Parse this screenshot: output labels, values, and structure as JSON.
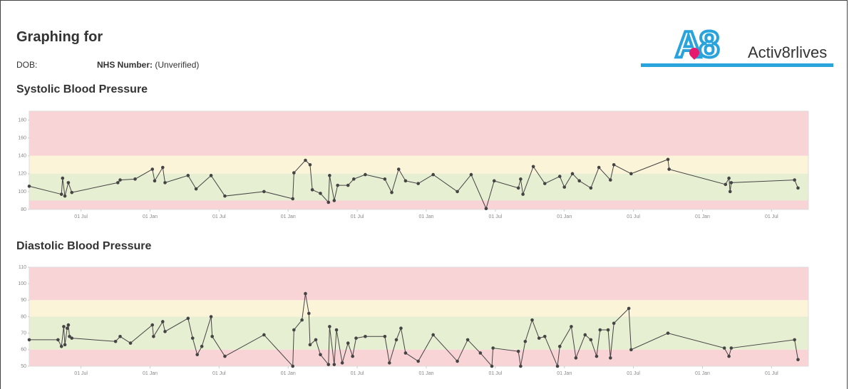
{
  "header": {
    "title": "Graphing for",
    "dob_label": "DOB:",
    "nhs_label": "NHS Number:",
    "nhs_value": "(Unverified)"
  },
  "logo": {
    "mark": "A8",
    "name": "Activ8rlives"
  },
  "chart_data": [
    {
      "type": "line",
      "title": "Systolic Blood Pressure",
      "color": "#444444",
      "marker": true,
      "x": [
        1.5,
        4.3,
        4.4,
        4.6,
        4.9,
        5.2,
        9.2,
        9.4,
        10.7,
        12.2,
        12.4,
        13.1,
        13.3,
        15.3,
        16.0,
        17.3,
        18.5,
        21.9,
        24.4,
        24.5,
        25.5,
        25.9,
        26.1,
        26.8,
        27.5,
        27.6,
        28.0,
        28.3,
        29.2,
        29.7,
        30.7,
        32.4,
        33.0,
        33.6,
        34.2,
        35.3,
        36.6,
        38.7,
        39.9,
        41.2,
        41.9,
        44.0,
        44.2,
        44.4,
        45.3,
        46.3,
        47.6,
        48.0,
        48.7,
        49.3,
        50.3,
        51.0,
        52.0,
        52.3,
        53.8,
        57.0,
        57.1,
        62.0,
        62.3,
        62.4,
        62.5,
        68.0,
        68.3
      ],
      "values": [
        106,
        97,
        115,
        95,
        110,
        99,
        110,
        113,
        114,
        125,
        112,
        127,
        110,
        118,
        103,
        118,
        95,
        100,
        92,
        121,
        135,
        130,
        102,
        98,
        88,
        118,
        90,
        107,
        107,
        114,
        119,
        114,
        99,
        125,
        112,
        109,
        119,
        100,
        119,
        81,
        112,
        104,
        114,
        97,
        128,
        109,
        117,
        105,
        120,
        112,
        104,
        127,
        113,
        130,
        120,
        136,
        125,
        108,
        115,
        100,
        110,
        113,
        104
      ],
      "xlim": [
        1.5,
        69.2
      ],
      "xticks": [
        {
          "value": 6,
          "label": "01 Jul"
        },
        {
          "value": 12,
          "label": "01 Jan"
        },
        {
          "value": 18,
          "label": "01 Jul"
        },
        {
          "value": 24,
          "label": "01 Jan"
        },
        {
          "value": 30,
          "label": "01 Jul"
        },
        {
          "value": 36,
          "label": "01 Jan"
        },
        {
          "value": 42,
          "label": "01 Jul"
        },
        {
          "value": 48,
          "label": "01 Jan"
        },
        {
          "value": 54,
          "label": "01 Jul"
        },
        {
          "value": 60,
          "label": "01 Jan"
        },
        {
          "value": 66,
          "label": "01 Jul"
        }
      ],
      "ylim": [
        80,
        190
      ],
      "yticks": [
        80,
        100,
        120,
        140,
        160,
        180
      ],
      "bands": [
        {
          "from": 140,
          "to": 190,
          "color": "#f9d4d6"
        },
        {
          "from": 120,
          "to": 140,
          "color": "#fbf4d8"
        },
        {
          "from": 90,
          "to": 120,
          "color": "#e7efd2"
        },
        {
          "from": 80,
          "to": 90,
          "color": "#f9d4d6"
        }
      ]
    },
    {
      "type": "line",
      "title": "Diastolic Blood Pressure",
      "color": "#444444",
      "marker": true,
      "x": [
        1.5,
        4.0,
        4.3,
        4.5,
        4.6,
        4.8,
        4.9,
        5.0,
        5.2,
        9.0,
        9.4,
        10.3,
        12.2,
        12.3,
        13.1,
        13.3,
        15.3,
        15.7,
        16.1,
        16.5,
        17.3,
        17.4,
        18.5,
        21.9,
        24.4,
        24.5,
        25.2,
        25.5,
        25.8,
        25.9,
        26.4,
        26.8,
        27.5,
        27.6,
        28.0,
        28.2,
        28.7,
        29.2,
        29.6,
        29.9,
        30.7,
        32.4,
        32.8,
        33.4,
        33.8,
        34.2,
        35.3,
        36.6,
        38.7,
        39.6,
        40.7,
        41.7,
        41.8,
        44.0,
        44.2,
        44.6,
        45.2,
        45.8,
        46.3,
        47.4,
        47.6,
        48.6,
        49.0,
        49.8,
        50.3,
        50.8,
        51.1,
        51.8,
        52.0,
        52.3,
        53.6,
        53.8,
        57.0,
        61.9,
        62.3,
        62.5,
        68.0,
        68.3
      ],
      "values": [
        66,
        66,
        62,
        74,
        63,
        73,
        75,
        68,
        67,
        65,
        68,
        64,
        75,
        68,
        77,
        71,
        79,
        67,
        57,
        62,
        80,
        68,
        56,
        69,
        50,
        72,
        78,
        94,
        82,
        63,
        66,
        57,
        51,
        74,
        51,
        72,
        52,
        64,
        56,
        67,
        68,
        68,
        52,
        66,
        73,
        58,
        53,
        69,
        53,
        66,
        58,
        50,
        61,
        59,
        50,
        65,
        78,
        67,
        68,
        50,
        62,
        74,
        55,
        69,
        66,
        56,
        72,
        72,
        55,
        76,
        85,
        60,
        70,
        61,
        56,
        61,
        66,
        54
      ],
      "xlim": [
        1.5,
        69.2
      ],
      "xticks": [
        {
          "value": 6,
          "label": "01 Jul"
        },
        {
          "value": 12,
          "label": "01 Jan"
        },
        {
          "value": 18,
          "label": "01 Jul"
        },
        {
          "value": 24,
          "label": "01 Jan"
        },
        {
          "value": 30,
          "label": "01 Jul"
        },
        {
          "value": 36,
          "label": "01 Jan"
        },
        {
          "value": 42,
          "label": "01 Jul"
        },
        {
          "value": 48,
          "label": "01 Jan"
        },
        {
          "value": 54,
          "label": "01 Jul"
        },
        {
          "value": 60,
          "label": "01 Jan"
        },
        {
          "value": 66,
          "label": "01 Jul"
        }
      ],
      "ylim": [
        50,
        110
      ],
      "yticks": [
        50,
        60,
        70,
        80,
        90,
        100,
        110
      ],
      "bands": [
        {
          "from": 90,
          "to": 110,
          "color": "#f9d4d6"
        },
        {
          "from": 80,
          "to": 90,
          "color": "#fbf4d8"
        },
        {
          "from": 60,
          "to": 80,
          "color": "#e7efd2"
        },
        {
          "from": 50,
          "to": 60,
          "color": "#f9d4d6"
        }
      ]
    }
  ]
}
